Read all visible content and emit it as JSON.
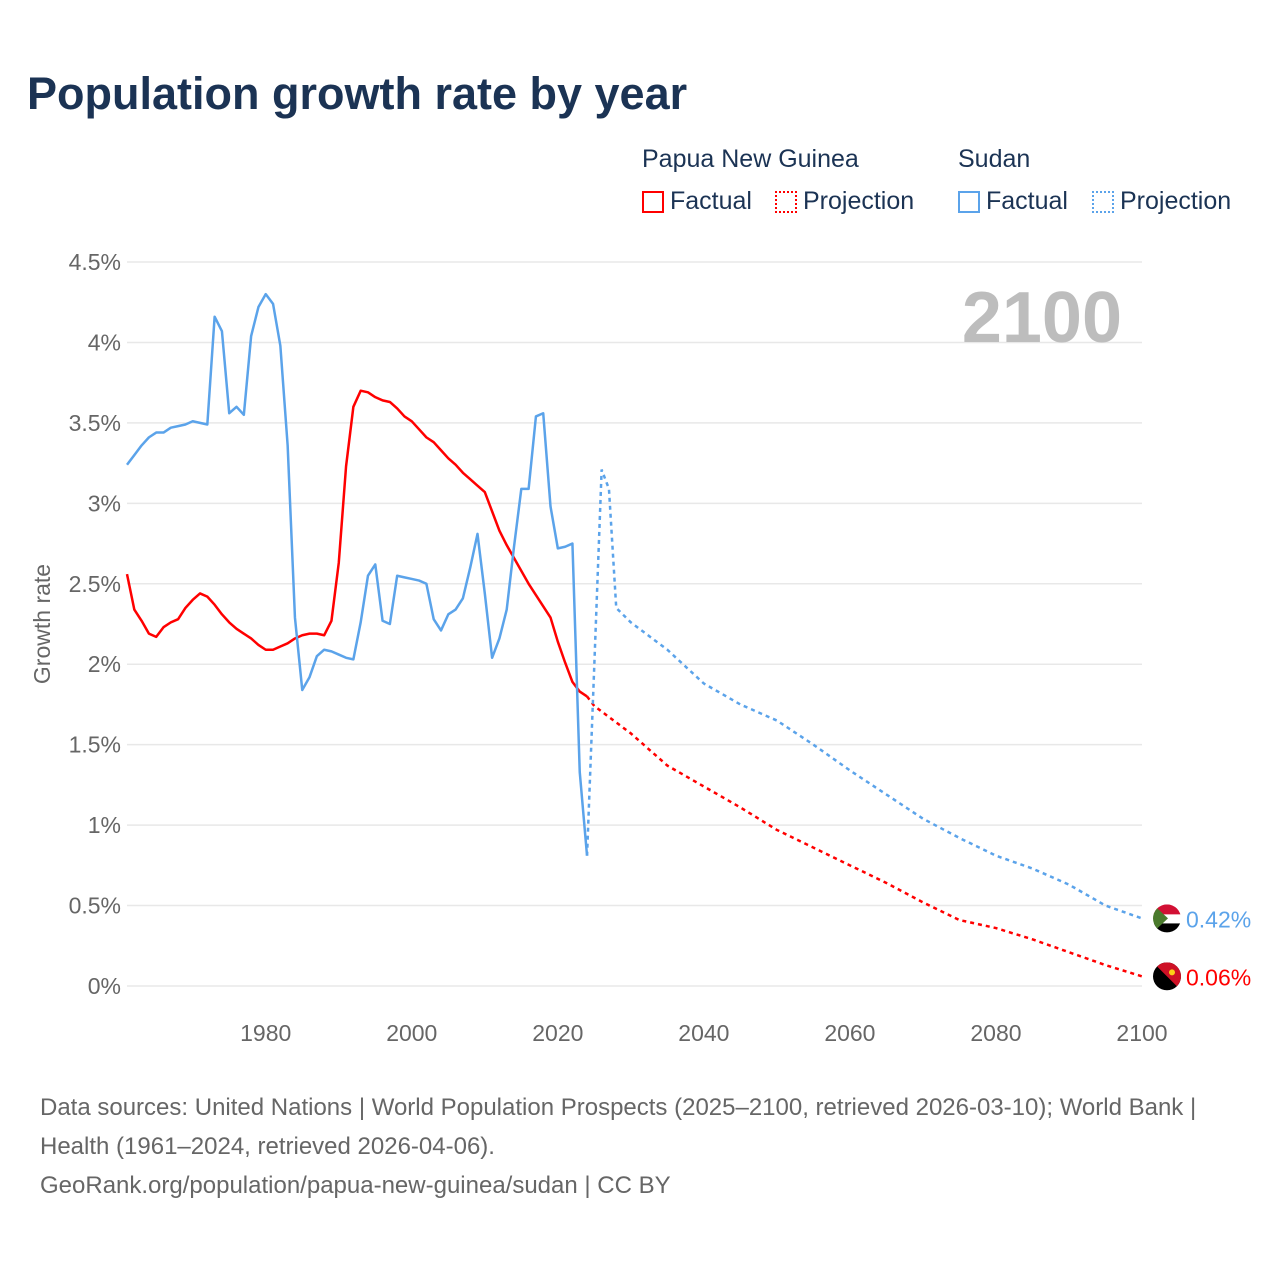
{
  "chart_data": {
    "type": "line",
    "title": "Population growth rate by year",
    "ylabel": "Growth rate",
    "xlabel": "",
    "xlim": [
      1961,
      2100
    ],
    "ylim": [
      0,
      4.5
    ],
    "x_ticks": [
      1980,
      2000,
      2020,
      2040,
      2060,
      2080,
      2100
    ],
    "y_ticks": [
      0,
      0.5,
      1,
      1.5,
      2,
      2.5,
      3,
      3.5,
      4,
      4.5
    ],
    "y_tick_labels": [
      "0%",
      "0.5%",
      "1%",
      "1.5%",
      "2%",
      "2.5%",
      "3%",
      "3.5%",
      "4%",
      "4.5%"
    ],
    "grid": true,
    "year_overlay": "2100",
    "legend": {
      "placement": "top-right",
      "groups": [
        {
          "name": "Papua New Guinea",
          "factual": "Factual",
          "projection": "Projection"
        },
        {
          "name": "Sudan",
          "factual": "Factual",
          "projection": "Projection"
        }
      ]
    },
    "series": [
      {
        "name": "Papua New Guinea",
        "color": "#ff0000",
        "end_label": "0.06%",
        "factual_start": 1961,
        "factual": [
          2.56,
          2.34,
          2.27,
          2.19,
          2.17,
          2.23,
          2.26,
          2.28,
          2.35,
          2.4,
          2.44,
          2.42,
          2.37,
          2.31,
          2.26,
          2.22,
          2.19,
          2.16,
          2.12,
          2.09,
          2.09,
          2.11,
          2.13,
          2.16,
          2.18,
          2.19,
          2.19,
          2.18,
          2.27,
          2.63,
          3.23,
          3.6,
          3.7,
          3.69,
          3.66,
          3.64,
          3.63,
          3.59,
          3.54,
          3.51,
          3.46,
          3.41,
          3.38,
          3.33,
          3.28,
          3.24,
          3.19,
          3.15,
          3.11,
          3.07,
          2.95,
          2.83,
          2.74,
          2.66,
          2.58,
          2.5,
          2.43,
          2.36,
          2.29,
          2.14,
          2.01,
          1.89,
          1.83,
          1.8
        ],
        "projection": [
          [
            2024,
            1.8
          ],
          [
            2025,
            1.74
          ],
          [
            2030,
            1.57
          ],
          [
            2035,
            1.37
          ],
          [
            2040,
            1.24
          ],
          [
            2045,
            1.11
          ],
          [
            2050,
            0.97
          ],
          [
            2055,
            0.86
          ],
          [
            2060,
            0.75
          ],
          [
            2065,
            0.64
          ],
          [
            2070,
            0.52
          ],
          [
            2075,
            0.41
          ],
          [
            2080,
            0.36
          ],
          [
            2085,
            0.29
          ],
          [
            2090,
            0.21
          ],
          [
            2095,
            0.13
          ],
          [
            2100,
            0.06
          ]
        ]
      },
      {
        "name": "Sudan",
        "color": "#5ba3ea",
        "end_label": "0.42%",
        "factual_start": 1961,
        "factual": [
          3.24,
          3.3,
          3.36,
          3.41,
          3.44,
          3.44,
          3.47,
          3.48,
          3.49,
          3.51,
          3.5,
          3.49,
          4.16,
          4.07,
          3.56,
          3.6,
          3.55,
          4.04,
          4.22,
          4.3,
          4.24,
          3.98,
          3.36,
          2.29,
          1.84,
          1.92,
          2.05,
          2.09,
          2.08,
          2.06,
          2.04,
          2.03,
          2.26,
          2.55,
          2.62,
          2.27,
          2.25,
          2.55,
          2.54,
          2.53,
          2.52,
          2.5,
          2.28,
          2.21,
          2.31,
          2.34,
          2.41,
          2.6,
          2.81,
          2.44,
          2.04,
          2.16,
          2.34,
          2.73,
          3.09,
          3.09,
          3.54,
          3.56,
          2.98,
          2.72,
          2.73,
          2.75,
          1.33,
          0.81
        ],
        "projection": [
          [
            2024,
            0.81
          ],
          [
            2025,
            2.0
          ],
          [
            2026,
            3.21
          ],
          [
            2027,
            3.09
          ],
          [
            2028,
            2.35
          ],
          [
            2030,
            2.26
          ],
          [
            2035,
            2.09
          ],
          [
            2040,
            1.88
          ],
          [
            2045,
            1.75
          ],
          [
            2050,
            1.65
          ],
          [
            2055,
            1.5
          ],
          [
            2060,
            1.34
          ],
          [
            2065,
            1.19
          ],
          [
            2070,
            1.04
          ],
          [
            2075,
            0.92
          ],
          [
            2080,
            0.81
          ],
          [
            2085,
            0.73
          ],
          [
            2090,
            0.63
          ],
          [
            2095,
            0.5
          ],
          [
            2100,
            0.42
          ]
        ]
      }
    ]
  },
  "footer": {
    "sources": "Data sources: United Nations | World Population Prospects (2025–2100, retrieved 2026-03-10); World Bank | Health (1961–2024, retrieved 2026-04-06).",
    "credit": "GeoRank.org/population/papua-new-guinea/sudan | CC BY"
  }
}
